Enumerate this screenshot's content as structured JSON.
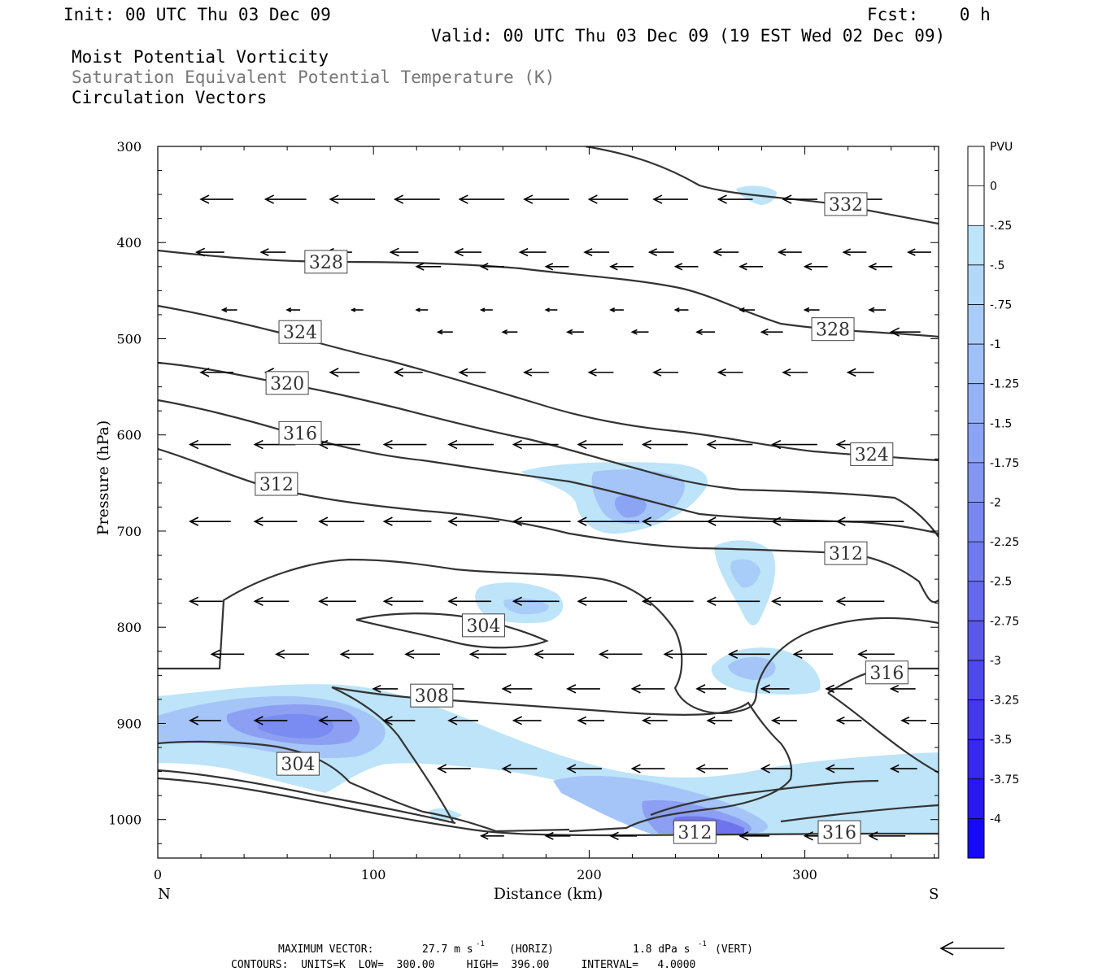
{
  "header": {
    "init": "Init: 00 UTC Thu 03 Dec 09",
    "fcst": "Fcst:    0 h",
    "valid": "Valid: 00 UTC Thu 03 Dec 09 (19 EST Wed 02 Dec 09)",
    "title1": "Moist Potential Vorticity",
    "title2": "Saturation Equivalent Potential Temperature (K)",
    "title3": "Circulation Vectors"
  },
  "footer": {
    "max_vector_label": "MAXIMUM VECTOR:",
    "max_horiz": "27.7 m s",
    "horiz_unit": "(HORIZ)",
    "max_vert": "1.8 dPa s",
    "vert_unit": "(VERT)",
    "superscript": "-1",
    "contours_line": "CONTOURS:  UNITS=K  LOW=  300.00     HIGH=  396.00     INTERVAL=   4.0000"
  },
  "colors": {
    "contour": "#333333",
    "vector": "#000000",
    "frame": "#000000"
  },
  "chart_data": {
    "type": "contour",
    "xlabel": "Distance (km)",
    "ylabel": "Pressure (hPa)",
    "xlim": [
      0,
      362
    ],
    "ylim": [
      1040,
      300
    ],
    "xticks": [
      0,
      100,
      200,
      300
    ],
    "yticks": [
      300,
      400,
      500,
      600,
      700,
      800,
      900,
      1000
    ],
    "x_end_labels": {
      "left": "N",
      "right": "S"
    },
    "colorbar": {
      "unit": "PVU",
      "levels": [
        "0",
        "-.25",
        "-.5",
        "-.75",
        "-1",
        "-1.25",
        "-1.5",
        "-1.75",
        "-2",
        "-2.25",
        "-2.5",
        "-2.75",
        "-3",
        "-3.25",
        "-3.5",
        "-3.75",
        "-4"
      ],
      "colors": [
        "#ffffff",
        "#ffffff",
        "#bde4f8",
        "#b3d8f8",
        "#a9ccf8",
        "#a0c0f8",
        "#96b2f6",
        "#8ca4f4",
        "#8296f2",
        "#7888f0",
        "#6e7aee",
        "#6468ec",
        "#5a58ea",
        "#4e48ea",
        "#4238ec",
        "#3628ee",
        "#2818f0",
        "#1808f8"
      ]
    },
    "theta_es_labels": [
      {
        "text": "332",
        "x": 319,
        "p": 360
      },
      {
        "text": "328",
        "x": 78,
        "p": 420
      },
      {
        "text": "328",
        "x": 313,
        "p": 490
      },
      {
        "text": "324",
        "x": 66,
        "p": 493
      },
      {
        "text": "324",
        "x": 331,
        "p": 620
      },
      {
        "text": "320",
        "x": 60,
        "p": 546
      },
      {
        "text": "316",
        "x": 66,
        "p": 598
      },
      {
        "text": "312",
        "x": 55,
        "p": 651
      },
      {
        "text": "312",
        "x": 319,
        "p": 723
      },
      {
        "text": "304",
        "x": 151,
        "p": 798
      },
      {
        "text": "308",
        "x": 127,
        "p": 871
      },
      {
        "text": "316",
        "x": 338,
        "p": 847
      },
      {
        "text": "304",
        "x": 65,
        "p": 942
      },
      {
        "text": "312",
        "x": 249,
        "p": 1013
      },
      {
        "text": "316",
        "x": 316,
        "p": 1013
      }
    ],
    "vector_scale": {
      "max_horiz": 27.7,
      "max_horiz_unit": "m s-1",
      "max_vert": 1.8,
      "max_vert_unit": "dPa s-1"
    }
  }
}
